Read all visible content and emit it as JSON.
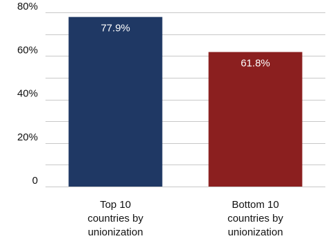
{
  "chart_data": {
    "type": "bar",
    "categories": [
      [
        "Top 10",
        "countries by",
        "unionization"
      ],
      [
        "Bottom 10",
        "countries by",
        "unionization"
      ]
    ],
    "values": [
      77.9,
      61.8
    ],
    "data_labels": [
      "77.9%",
      "61.8%"
    ],
    "colors": [
      "#1f3864",
      "#8b1f1f"
    ],
    "y_ticks": [
      "0",
      "20%",
      "40%",
      "60%",
      "80%"
    ],
    "ylim": [
      0,
      80
    ],
    "grid": true,
    "legend": "none"
  }
}
